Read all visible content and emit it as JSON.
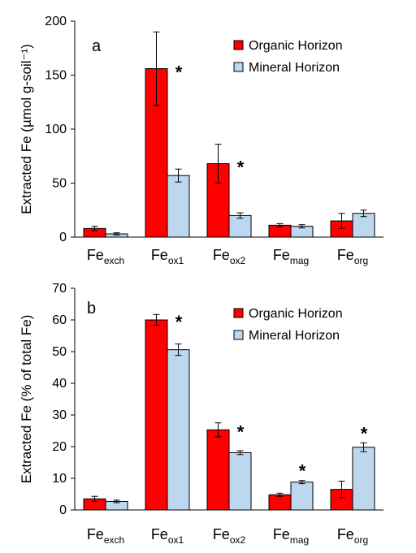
{
  "chart_data": [
    {
      "type": "bar",
      "panel_label": "a",
      "ylabel": "Extracted Fe (µmol g-soil⁻¹)",
      "ylim": [
        0,
        200
      ],
      "yticks": [
        0,
        50,
        100,
        150,
        200
      ],
      "categories": [
        {
          "base": "Fe",
          "sub": "exch"
        },
        {
          "base": "Fe",
          "sub": "ox1"
        },
        {
          "base": "Fe",
          "sub": "ox2"
        },
        {
          "base": "Fe",
          "sub": "mag"
        },
        {
          "base": "Fe",
          "sub": "org"
        }
      ],
      "series": [
        {
          "name": "Organic Horizon",
          "color": "#ff0000",
          "values": [
            8,
            156,
            68,
            11,
            15
          ],
          "errors": [
            2,
            34,
            18,
            1.5,
            7
          ]
        },
        {
          "name": "Mineral Horizon",
          "color": "#bdd7ee",
          "values": [
            3,
            57,
            20,
            10,
            22
          ],
          "errors": [
            1,
            6,
            2.5,
            1.5,
            3
          ]
        }
      ],
      "significance": [
        false,
        true,
        true,
        false,
        false
      ],
      "significance_marker": "*",
      "legend_position": "top-right",
      "grid": false
    },
    {
      "type": "bar",
      "panel_label": "b",
      "ylabel": "Extracted Fe (% of total Fe)",
      "ylim": [
        0,
        70
      ],
      "yticks": [
        0,
        10,
        20,
        30,
        40,
        50,
        60,
        70
      ],
      "categories": [
        {
          "base": "Fe",
          "sub": "exch"
        },
        {
          "base": "Fe",
          "sub": "ox1"
        },
        {
          "base": "Fe",
          "sub": "ox2"
        },
        {
          "base": "Fe",
          "sub": "mag"
        },
        {
          "base": "Fe",
          "sub": "org"
        }
      ],
      "series": [
        {
          "name": "Organic Horizon",
          "color": "#ff0000",
          "values": [
            3.5,
            60,
            25.3,
            4.8,
            6.5
          ],
          "errors": [
            0.8,
            1.7,
            2.2,
            0.5,
            2.6
          ]
        },
        {
          "name": "Mineral Horizon",
          "color": "#bdd7ee",
          "values": [
            2.7,
            50.6,
            18.1,
            8.8,
            19.8
          ],
          "errors": [
            0.4,
            1.8,
            0.6,
            0.5,
            1.4
          ]
        }
      ],
      "significance": [
        false,
        true,
        true,
        true,
        true
      ],
      "significance_marker": "*",
      "legend_position": "top-right",
      "grid": false
    }
  ]
}
